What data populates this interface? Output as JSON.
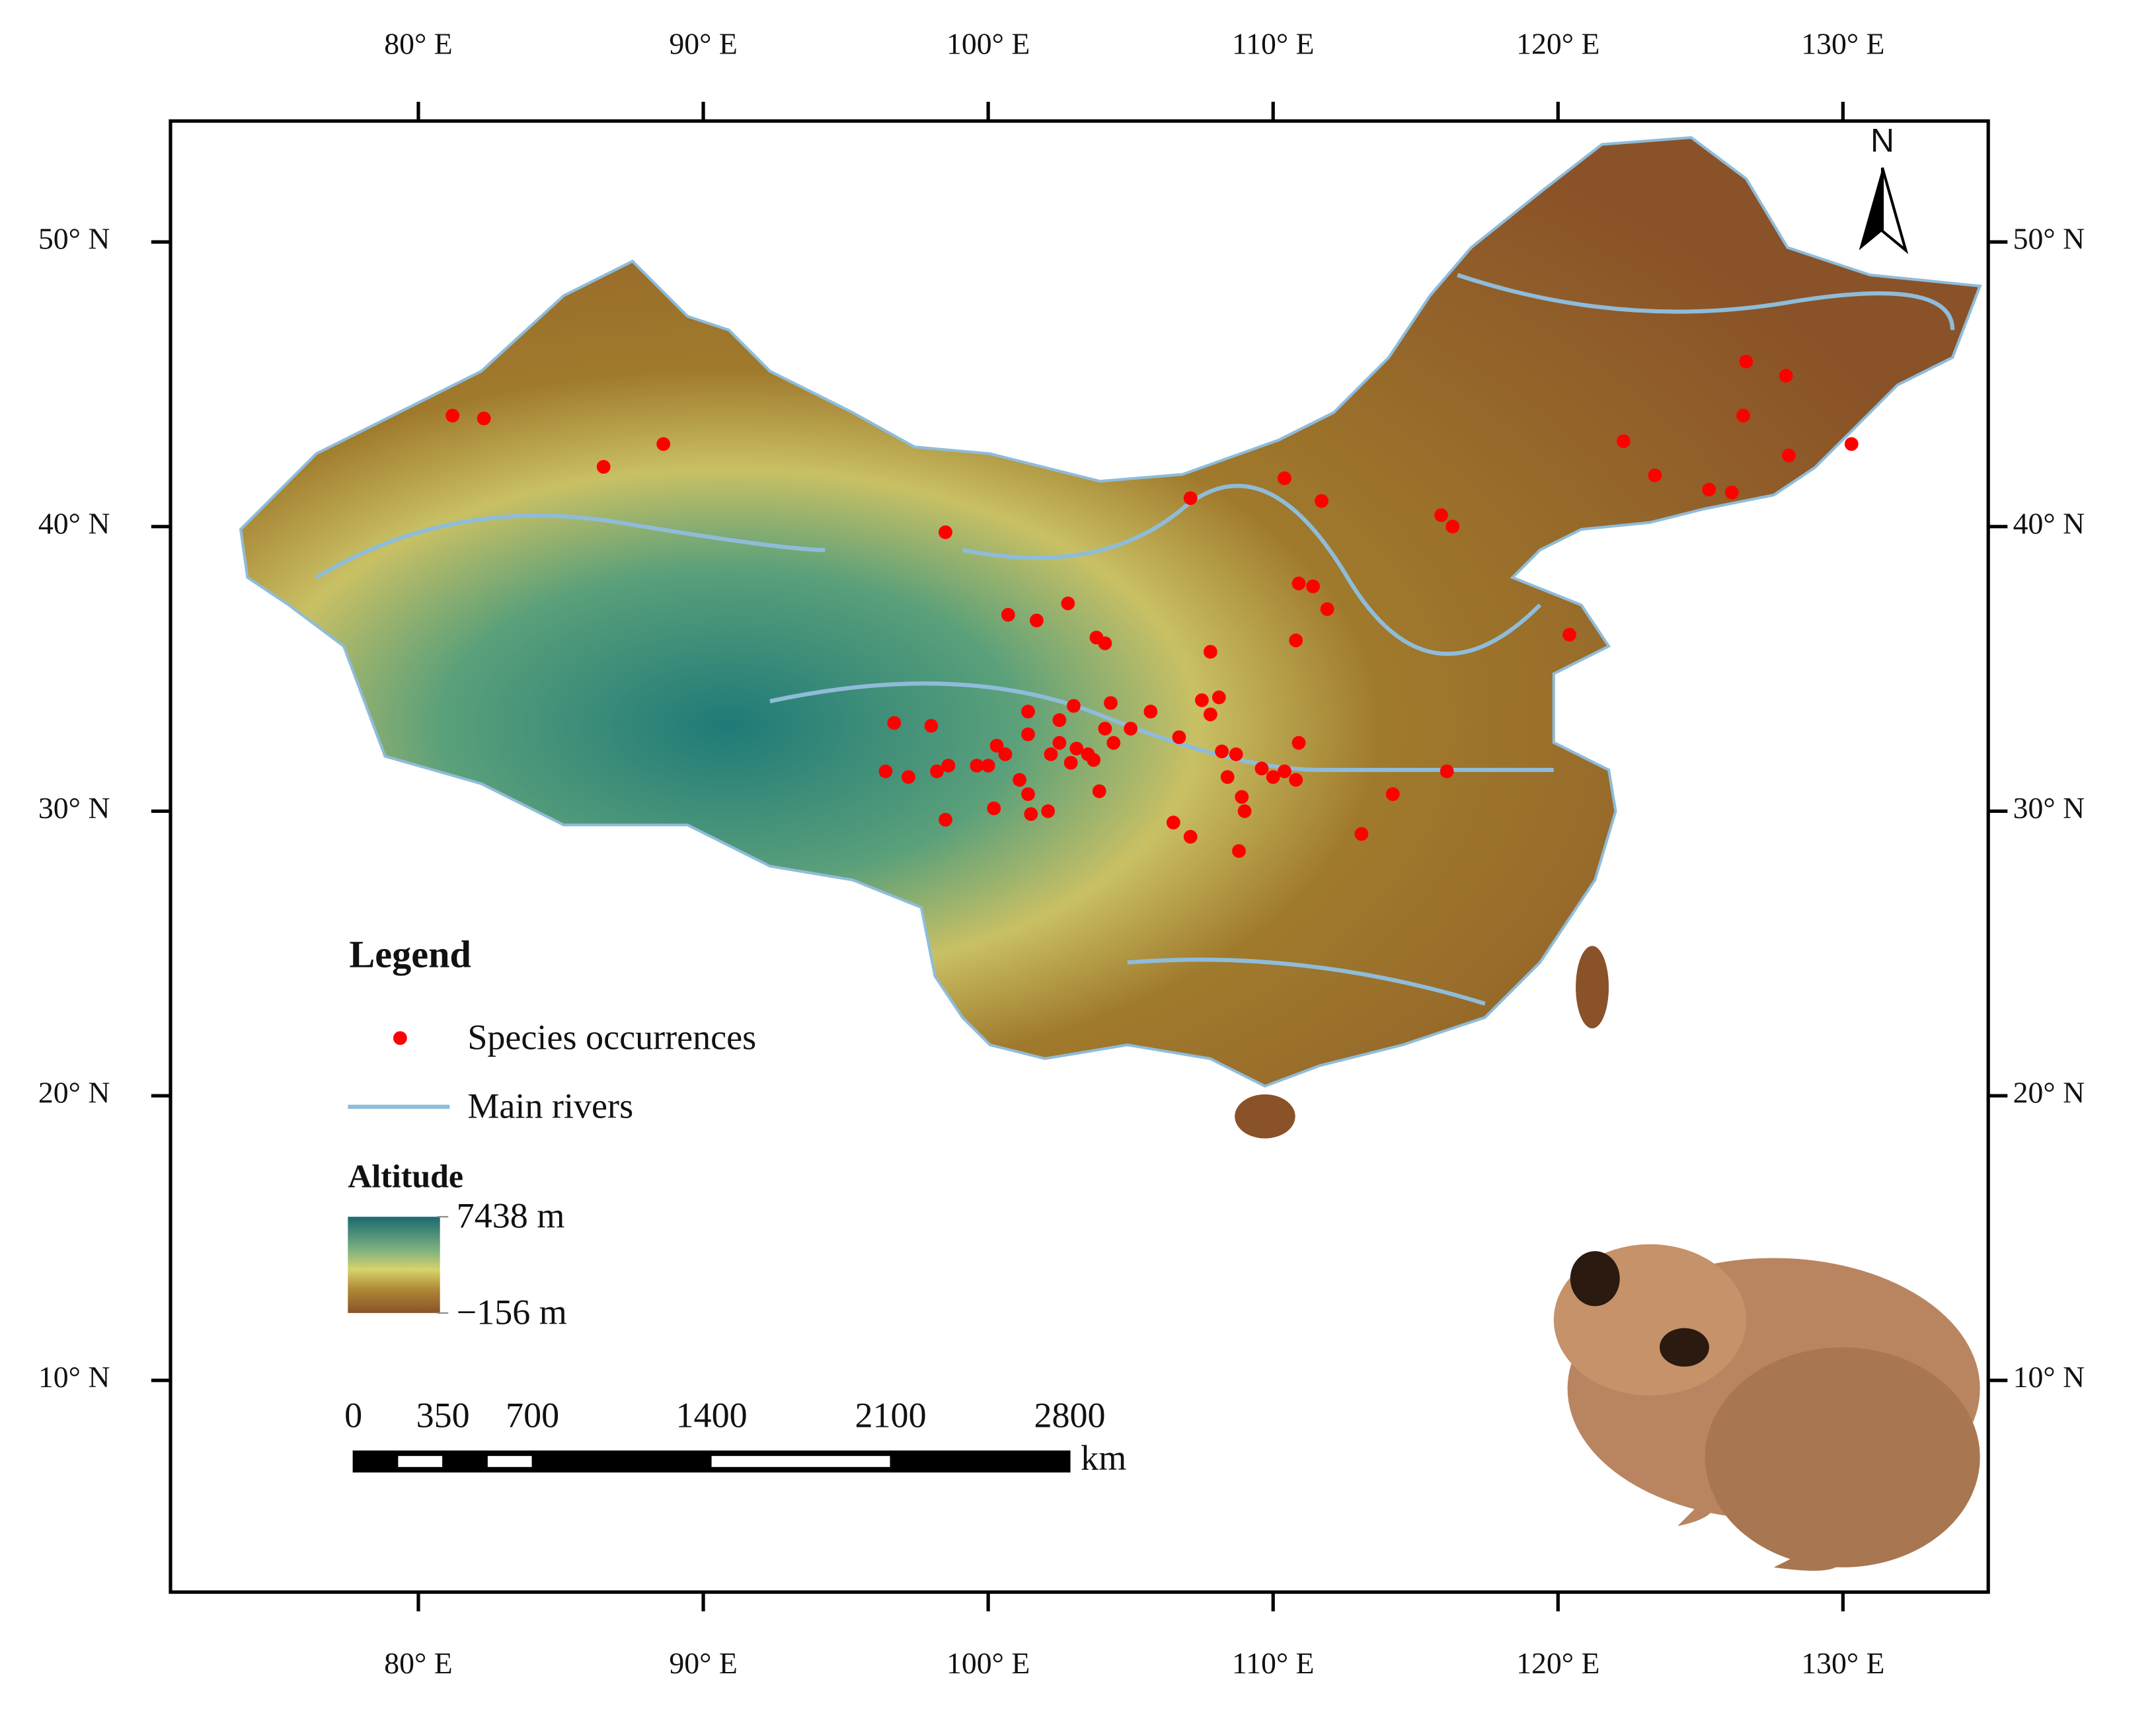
{
  "map": {
    "north": "N",
    "xlim": [
      71.3,
      135.1
    ],
    "ylim": [
      2.56,
      54.25
    ],
    "xticks": [
      {
        "value": 80,
        "label": "80° E"
      },
      {
        "value": 90,
        "label": "90° E"
      },
      {
        "value": 100,
        "label": "100° E"
      },
      {
        "value": 110,
        "label": "110° E"
      },
      {
        "value": 120,
        "label": "120° E"
      },
      {
        "value": 130,
        "label": "130° E"
      }
    ],
    "yticks": [
      {
        "value": 50,
        "label": "50° N"
      },
      {
        "value": 40,
        "label": "40° N"
      },
      {
        "value": 30,
        "label": "30° N"
      },
      {
        "value": 20,
        "label": "20° N"
      },
      {
        "value": 10,
        "label": "10° N"
      }
    ],
    "legend": {
      "title": "Legend",
      "occurrences": "Species occurrences",
      "rivers": "Main rivers"
    },
    "point_color": "#ff0000",
    "river_color": "#8fbcd9",
    "occurrences": {
      "lon": [
        81.2,
        82.3,
        86.5,
        88.6,
        98.5,
        100.7,
        101.7,
        102.8,
        103.8,
        104.1,
        107.1,
        110.4,
        111.7,
        115.9,
        116.3,
        120.4,
        126.6,
        128.0,
        122.3,
        123.4,
        126.5,
        128.1,
        130.3,
        125.3,
        126.1,
        107.8,
        96.7,
        96.4,
        97.2,
        98.0,
        98.2,
        98.6,
        98.5,
        99.6,
        100.0,
        100.2,
        100.3,
        101.4,
        101.4,
        101.1,
        101.4,
        101.5,
        102.1,
        102.5,
        103.0,
        102.5,
        102.2,
        102.9,
        103.5,
        103.9,
        103.7,
        104.1,
        104.3,
        104.4,
        105.0,
        105.7,
        106.7,
        106.5,
        107.1,
        107.5,
        108.1,
        107.8,
        108.2,
        108.7,
        108.4,
        108.9,
        109.0,
        108.8,
        109.6,
        110.0,
        110.4,
        110.9,
        110.8,
        114.2,
        113.1,
        116.1,
        110.9,
        111.4,
        111.9,
        110.8,
        103.1,
        100.6
      ],
      "lat": [
        43.9,
        43.8,
        42.1,
        42.9,
        39.8,
        36.9,
        36.7,
        37.3,
        36.1,
        35.9,
        41.0,
        41.7,
        40.9,
        40.4,
        40.0,
        36.2,
        45.8,
        45.3,
        43.0,
        41.8,
        43.9,
        42.5,
        42.9,
        41.3,
        41.2,
        35.6,
        33.1,
        31.4,
        31.2,
        33.0,
        31.4,
        31.6,
        29.7,
        31.6,
        31.6,
        30.1,
        32.3,
        33.5,
        32.7,
        31.1,
        30.6,
        29.9,
        30.0,
        33.2,
        33.7,
        32.4,
        32.0,
        31.7,
        32.0,
        30.7,
        31.8,
        32.9,
        33.8,
        32.4,
        32.9,
        33.5,
        32.6,
        29.6,
        29.1,
        33.9,
        34.0,
        33.4,
        32.1,
        32.0,
        31.2,
        30.5,
        30.0,
        28.6,
        31.5,
        31.2,
        31.4,
        32.4,
        31.1,
        30.6,
        29.2,
        31.4,
        38.0,
        37.9,
        37.1,
        36.0,
        32.2,
        32.0
      ]
    },
    "altitude": {
      "title": "Altitude",
      "ticks": [
        {
          "value": 7438,
          "label": "7438 m"
        },
        {
          "value": -156,
          "label": "−156 m"
        }
      ]
    },
    "scale_bar": {
      "ticks": [
        0,
        350,
        700,
        1400,
        2100,
        2800
      ],
      "unit": "km"
    }
  }
}
